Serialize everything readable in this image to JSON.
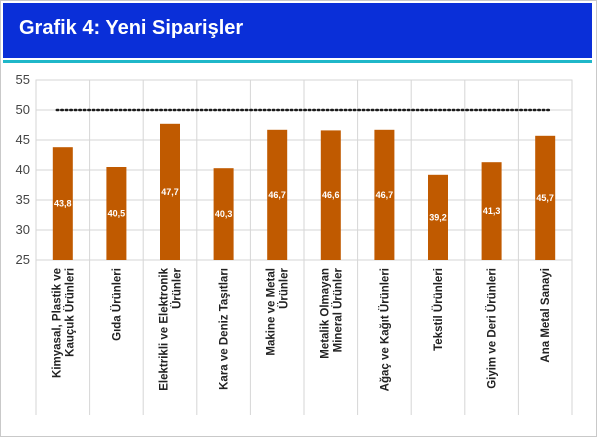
{
  "header": {
    "title": "Grafik 4: Yeni Siparişler"
  },
  "colors": {
    "header": "#0a2fd8",
    "accent_line": "#1fb7c9",
    "bar": "#c05a00",
    "grid": "#d6d6d6",
    "reference_line": "#1a1a1a"
  },
  "chart_data": {
    "type": "bar",
    "title": "",
    "xlabel": "",
    "ylabel": "",
    "ylim": [
      25,
      55
    ],
    "yticks": [
      25,
      30,
      35,
      40,
      45,
      50,
      55
    ],
    "grid": true,
    "legend": "none",
    "categories": [
      [
        "Kimyasal, Plastik ve",
        "Kauçuk Ürünleri"
      ],
      [
        "Gıda Ürünleri"
      ],
      [
        "Elektrikli ve Elektronik",
        "Ürünler"
      ],
      [
        "Kara ve Deniz Taşıtları"
      ],
      [
        "Makine ve Metal",
        "Ürünler"
      ],
      [
        "Metalik Olmayan",
        "Mineral Ürünler"
      ],
      [
        "Ağaç ve Kağıt Ürünleri"
      ],
      [
        "Tekstil Ürünleri"
      ],
      [
        "Giyim ve Deri Ürünleri"
      ],
      [
        "Ana Metal Sanayi"
      ]
    ],
    "series": [
      {
        "values": [
          43.8,
          40.5,
          47.7,
          40.3,
          46.7,
          46.6,
          46.7,
          39.2,
          41.3,
          45.7
        ],
        "labels": [
          "43,8",
          "40,5",
          "47,7",
          "40,3",
          "46,7",
          "46,6",
          "46,7",
          "39,2",
          "41,3",
          "45,7"
        ]
      }
    ],
    "reference_line": {
      "y": 50,
      "style": "dotted"
    }
  }
}
